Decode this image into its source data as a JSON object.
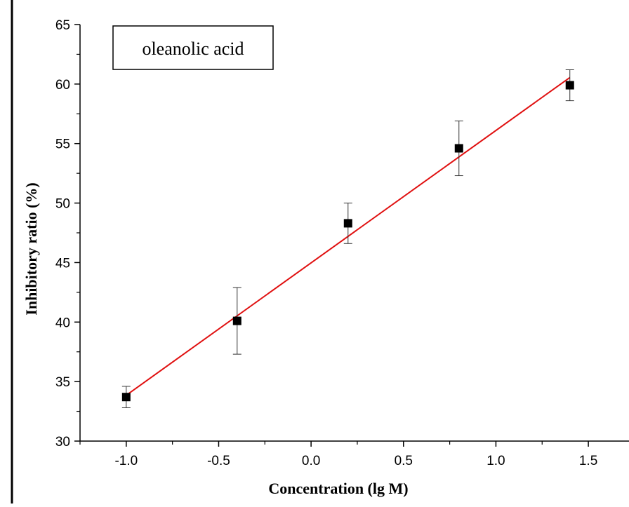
{
  "chart_data": {
    "type": "scatter",
    "title": "",
    "annotation": "oleanolic acid",
    "xlabel": "Concentration (lg M)",
    "ylabel": "Inhibitory ratio (%)",
    "xlim": [
      -1.25,
      1.72
    ],
    "ylim": [
      30,
      65
    ],
    "x_ticks": [
      -1.0,
      -0.5,
      0.0,
      0.5,
      1.0,
      1.5
    ],
    "x_tick_labels": [
      "-1.0",
      "-0.5",
      "0.0",
      "0.5",
      "1.0",
      "1.5"
    ],
    "y_ticks": [
      30,
      35,
      40,
      45,
      50,
      55,
      60,
      65
    ],
    "y_tick_labels": [
      "30",
      "35",
      "40",
      "45",
      "50",
      "55",
      "60",
      "65"
    ],
    "grid": false,
    "series": [
      {
        "points": [
          {
            "x": -1.0,
            "y": 33.7,
            "err": 0.9
          },
          {
            "x": -0.4,
            "y": 40.1,
            "err": 2.8
          },
          {
            "x": 0.2,
            "y": 48.3,
            "err": 1.7
          },
          {
            "x": 0.8,
            "y": 54.6,
            "err": 2.3
          },
          {
            "x": 1.4,
            "y": 59.9,
            "err": 1.3
          }
        ],
        "marker_color": "#000000"
      }
    ],
    "fit_line": {
      "x": [
        -1.0,
        1.4
      ],
      "y": [
        33.85,
        60.55
      ],
      "color": "#e01010"
    }
  }
}
